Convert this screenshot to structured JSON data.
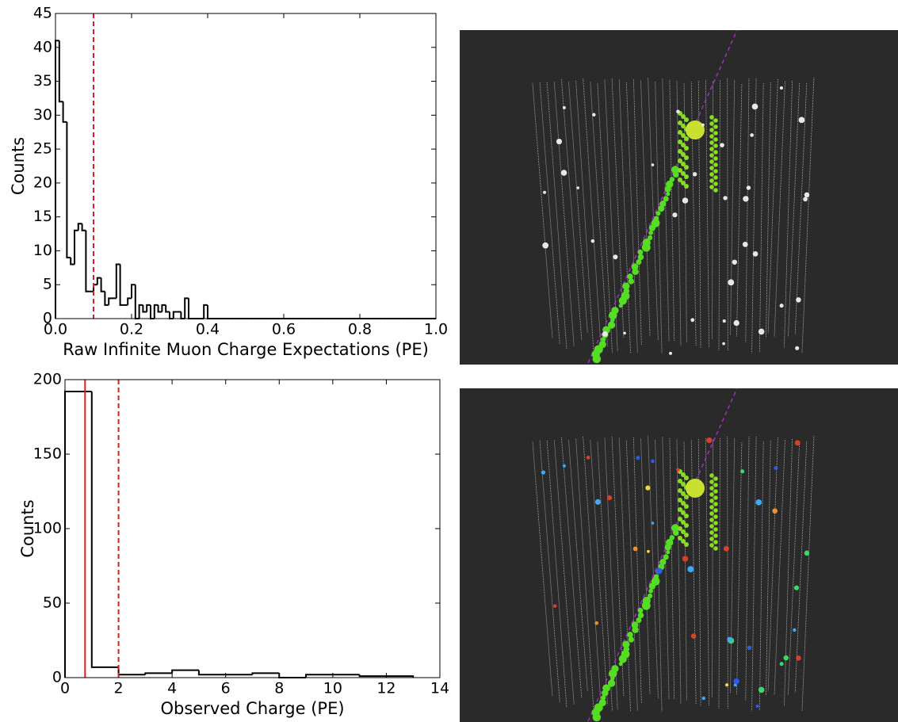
{
  "chart_data": [
    {
      "type": "histogram",
      "xlabel": "Raw Infinite Muon Charge Expectations (PE)",
      "ylabel": "Counts",
      "bins": [
        0,
        0.01,
        0.02,
        0.03,
        0.04,
        0.05,
        0.06,
        0.07,
        0.08,
        0.09,
        0.1,
        0.11,
        0.12,
        0.13,
        0.14,
        0.15,
        0.16,
        0.17,
        0.18,
        0.19,
        0.2,
        0.21,
        0.22,
        0.23,
        0.24,
        0.25,
        0.26,
        0.27,
        0.28,
        0.29,
        0.3,
        0.31,
        0.32,
        0.33,
        0.34,
        0.35,
        0.36,
        0.37,
        0.38,
        0.39,
        0.4,
        0.41,
        0.42,
        0.43,
        0.44,
        0.45,
        0.46,
        0.47,
        0.48,
        0.49,
        0.5,
        0.51,
        0.52,
        0.53,
        0.54,
        0.55,
        0.56,
        0.57,
        0.58,
        0.59,
        0.6,
        0.61,
        0.62,
        0.63,
        0.64,
        0.65,
        0.66,
        0.67,
        0.68,
        0.69,
        0.7,
        0.71,
        0.72,
        0.73,
        0.74,
        0.75,
        0.76,
        0.77,
        0.78,
        0.79,
        0.8,
        0.81,
        0.82,
        0.83,
        0.84,
        0.85,
        0.86,
        0.87,
        0.88,
        0.89,
        0.9,
        0.91,
        0.92,
        0.93,
        0.94,
        0.95,
        0.96,
        0.97,
        0.98,
        0.99,
        1
      ],
      "values": [
        41,
        32,
        29,
        9,
        8,
        13,
        14,
        13,
        4,
        4,
        5,
        6,
        4,
        2,
        3,
        3,
        8,
        2,
        2,
        3,
        5,
        0,
        2,
        1,
        2,
        0,
        2,
        1,
        2,
        1,
        0,
        1,
        1,
        0,
        3,
        0,
        0,
        0,
        0,
        2,
        0,
        0,
        0,
        0,
        0,
        0,
        0,
        0,
        0,
        0,
        0,
        0,
        0,
        0,
        0,
        0,
        0,
        0,
        0,
        0,
        0,
        0,
        0,
        0,
        0,
        0,
        0,
        0,
        0,
        0,
        0,
        0,
        0,
        0,
        0,
        0,
        0,
        0,
        0,
        0,
        0,
        0,
        0,
        0,
        0,
        0,
        0,
        0,
        0,
        0,
        0,
        0,
        0,
        0,
        0,
        0,
        0,
        0,
        0,
        0
      ],
      "color": "#000000",
      "vlines": [
        {
          "value": 0.1,
          "style": "dashed",
          "color": "#e31a1c"
        }
      ],
      "xlim": [
        0,
        1
      ],
      "xticks": [
        {
          "value": 0,
          "label": "0.0"
        },
        0.2,
        0.4,
        0.6,
        0.8,
        {
          "value": 1,
          "label": "1.0"
        }
      ],
      "ylim": [
        0,
        45
      ],
      "yticks": [
        0,
        5,
        10,
        15,
        20,
        25,
        30,
        35,
        40,
        45
      ]
    },
    {
      "type": "histogram",
      "xlabel": "Observed Charge (PE)",
      "ylabel": "Counts",
      "bins": [
        0,
        1,
        2,
        3,
        4,
        5,
        6,
        7,
        8,
        9,
        10,
        11,
        12,
        13
      ],
      "values": [
        192,
        7,
        2,
        3,
        5,
        2,
        2,
        3,
        0,
        2,
        2,
        1,
        1
      ],
      "color": "#000000",
      "vlines": [
        {
          "value": 0.75,
          "style": "solid",
          "color": "#e31a1c"
        },
        {
          "value": 2,
          "style": "dashed",
          "color": "#e31a1c"
        }
      ],
      "xlim": [
        0,
        14
      ],
      "xticks": [
        0,
        2,
        4,
        6,
        8,
        10,
        12,
        14
      ],
      "ylim": [
        0,
        200
      ],
      "yticks": [
        0,
        50,
        100,
        150,
        200
      ]
    }
  ]
}
